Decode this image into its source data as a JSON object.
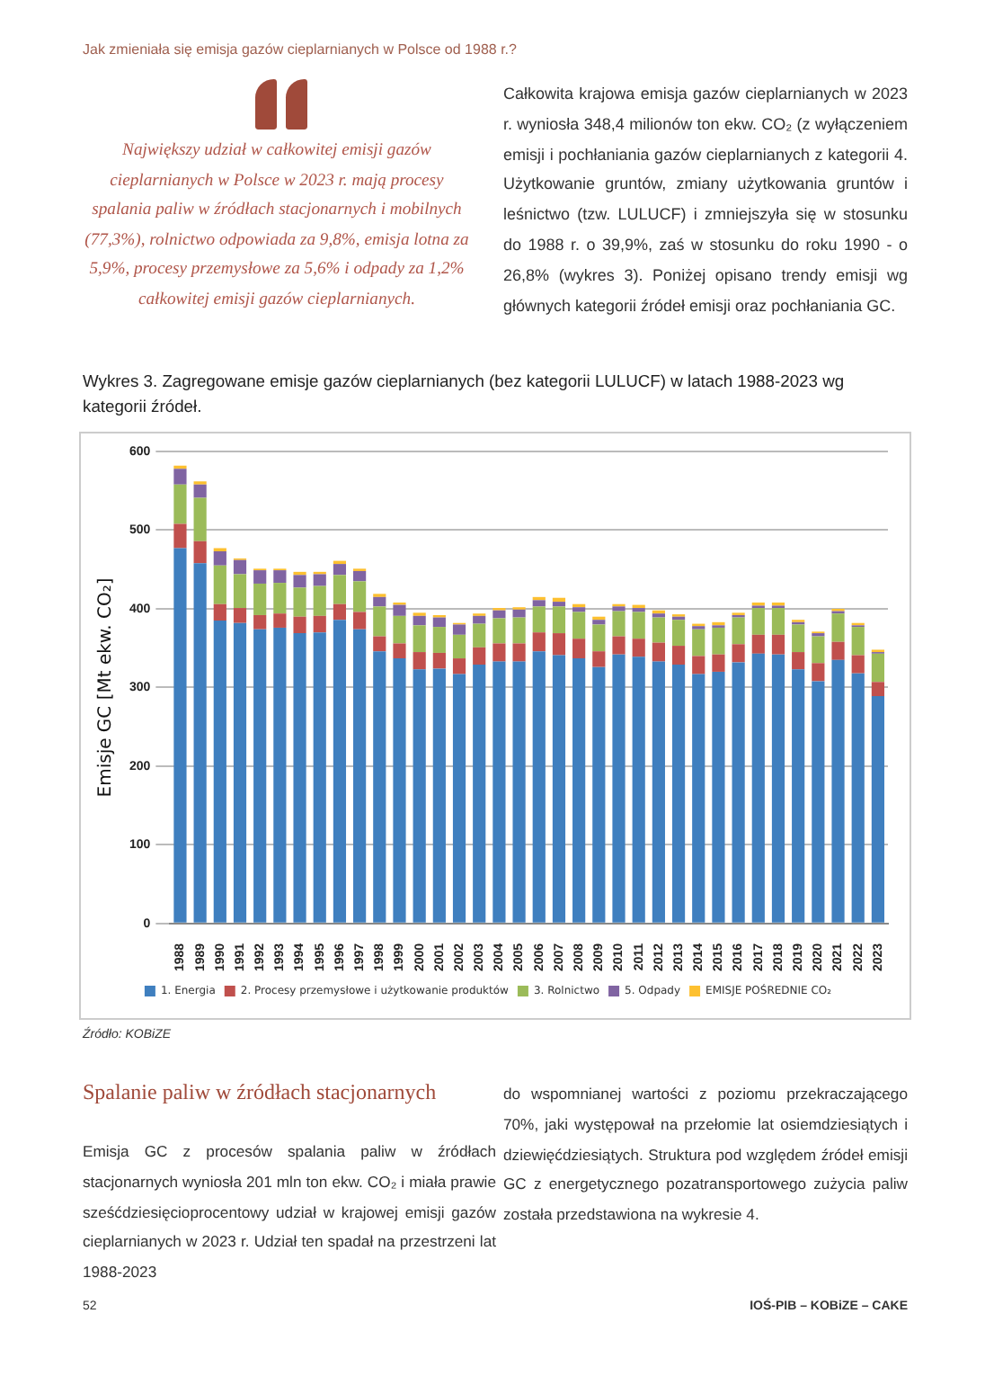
{
  "chart_data": {
    "type": "bar",
    "stacked": true,
    "title": "Wykres 3. Zagregowane emisje gazów cieplarnianych (bez kategorii LULUCF) w latach 1988-2023 wg kategorii źródeł.",
    "ylabel": "Emisje GC [Mt ekw. CO₂]",
    "categories": [
      "1988",
      "1989",
      "1990",
      "1991",
      "1992",
      "1993",
      "1994",
      "1995",
      "1996",
      "1997",
      "1998",
      "1999",
      "2000",
      "2001",
      "2002",
      "2003",
      "2004",
      "2005",
      "2006",
      "2007",
      "2008",
      "2009",
      "2010",
      "2011",
      "2012",
      "2013",
      "2014",
      "2015",
      "2016",
      "2017",
      "2018",
      "2019",
      "2020",
      "2021",
      "2022",
      "2023"
    ],
    "series": [
      {
        "name": "1. Energia",
        "color": "#3f7fbf",
        "values": [
          477,
          458,
          385,
          382,
          374,
          376,
          369,
          370,
          386,
          374,
          346,
          337,
          323,
          324,
          317,
          329,
          333,
          333,
          346,
          341,
          337,
          326,
          342,
          339,
          333,
          329,
          317,
          320,
          332,
          343,
          342,
          323,
          308,
          335,
          318,
          289
        ]
      },
      {
        "name": "2. Procesy przemysłowe i użytkowanie produktów",
        "color": "#c0504d",
        "values": [
          31,
          28,
          21,
          19,
          18,
          18,
          21,
          21,
          20,
          22,
          19,
          19,
          22,
          20,
          20,
          22,
          23,
          23,
          24,
          28,
          25,
          20,
          23,
          23,
          24,
          24,
          23,
          22,
          23,
          24,
          25,
          22,
          23,
          23,
          23,
          18
        ]
      },
      {
        "name": "3. Rolnictwo",
        "color": "#9bbb59",
        "values": [
          50,
          55,
          49,
          43,
          40,
          39,
          37,
          38,
          37,
          39,
          38,
          35,
          34,
          33,
          30,
          30,
          32,
          33,
          33,
          34,
          34,
          34,
          32,
          34,
          32,
          33,
          34,
          34,
          34,
          34,
          34,
          35,
          34,
          36,
          36,
          36
        ]
      },
      {
        "name": "5. Odpady",
        "color": "#8064a2",
        "values": [
          20,
          17,
          18,
          18,
          17,
          16,
          16,
          15,
          14,
          13,
          12,
          14,
          12,
          12,
          13,
          10,
          10,
          10,
          8,
          6,
          6,
          6,
          6,
          5,
          5,
          4,
          4,
          3,
          3,
          3,
          3,
          3,
          4,
          3,
          2,
          2
        ]
      },
      {
        "name": "EMISJE POŚREDNIE CO₂",
        "color": "#fdc030",
        "values": [
          4,
          4,
          4,
          2,
          2,
          2,
          4,
          3,
          4,
          3,
          4,
          3,
          4,
          3,
          2,
          3,
          3,
          3,
          4,
          5,
          4,
          4,
          3,
          4,
          4,
          3,
          3,
          4,
          3,
          4,
          4,
          3,
          2,
          3,
          3,
          3
        ]
      }
    ],
    "ylim": [
      0,
      600
    ],
    "yticks": [
      0,
      100,
      200,
      300,
      400,
      500,
      600
    ],
    "grid": "y",
    "legend": "bottom",
    "annotations": [
      "Jak zmieniała się emisja gazów cieplarnianych w Polsce od 1988 r.?",
      "Największy udział w całkowitej emisji gazów cieplarnianych w Polsce w 2023 r. mają procesy spalania paliw w źródłach stacjonarnych i mobilnych (77,3%), rolnictwo odpowiada za 9,8%, emisja lotna za 5,9%, procesy przemysłowe za 5,6% i odpady za 1,2% całkowitej emisji gazów cieplarnianych.",
      "Całkowita krajowa emisja gazów cieplarnianych w 2023 r. wyniosła 348,4 milionów ton ekw. CO₂ (z wyłączeniem emisji i pochłaniania gazów cieplarnianych z kategorii 4. Użytkowanie gruntów, zmiany użytkowania gruntów i leśnictwo (tzw. LULUCF) i zmniejszyła się w stosunku do 1988 r. o 39,9%, zaś w stosunku do roku 1990 - o 26,8% (wykres 3). Poniżej opisano trendy emisji wg głównych kategorii źródeł emisji oraz pochłaniania GC.",
      "Źródło: KOBiZE",
      "Spalanie paliw w źródłach stacjonarnych",
      "Emisja GC z procesów spalania paliw w źródłach stacjonarnych wyniosła 201 mln ton ekw. CO₂ i miała prawie sześćdziesięcioprocentowy udział w krajowej emisji gazów cieplarnianych w 2023 r. Udział ten spadał na przestrzeni lat 1988-2023",
      "do wspomnianej wartości z poziomu przekraczającego 70%, jaki występował na przełomie lat osiemdziesiątych i dziewięćdziesiątych. Struktura pod względem źródeł emisji GC z energetycznego pozatransportowego zużycia paliw została przedstawiona na wykresie 4.",
      "52",
      "IOŚ-PIB – KOBiZE – CAKE"
    ]
  }
}
